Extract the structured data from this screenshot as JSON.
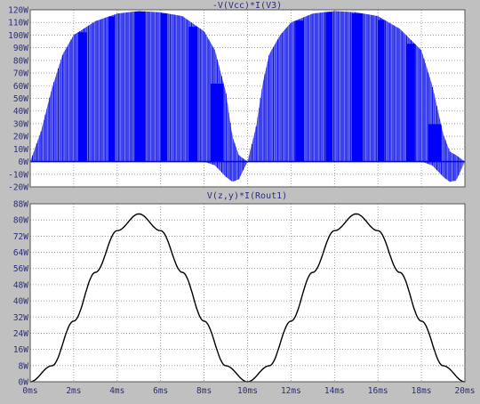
{
  "colors": {
    "background": "#c0c0c0",
    "plot_background": "#ffffff",
    "grid": "#8a8a8a",
    "axis_text": "#2d2d7a",
    "series_power": "#0000ff",
    "series_power_envelope": "#6f74e4",
    "series_load": "#000000"
  },
  "chart_data": [
    {
      "type": "line",
      "title": "-V(Vcc)*I(V3)",
      "x": [
        0,
        0.5,
        1,
        1.5,
        2,
        3,
        4,
        5,
        6,
        7,
        8,
        8.5,
        9,
        9.3,
        9.6,
        10,
        10.4,
        10.7,
        11,
        11.5,
        12,
        13,
        14,
        15,
        16,
        17,
        18,
        18.5,
        19,
        19.3,
        19.6,
        20
      ],
      "y_upper": [
        0,
        24,
        58,
        85,
        100,
        111,
        117,
        119,
        118,
        115,
        103,
        88,
        55,
        20,
        5,
        0,
        28,
        62,
        85,
        100,
        110,
        117,
        119,
        118,
        115,
        105,
        88,
        60,
        22,
        8,
        5,
        0
      ],
      "y_lower": [
        0,
        0,
        0,
        0,
        0,
        0,
        0,
        0,
        0,
        0,
        0,
        -3,
        -12,
        -16,
        -14,
        0,
        0,
        0,
        0,
        0,
        0,
        0,
        0,
        0,
        0,
        0,
        0,
        -3,
        -12,
        -16,
        -15,
        0
      ],
      "xlim": [
        0,
        20
      ],
      "ylim": [
        -20,
        120
      ],
      "y_ticks": [
        "120W",
        "110W",
        "100W",
        "90W",
        "80W",
        "70W",
        "60W",
        "50W",
        "40W",
        "30W",
        "20W",
        "10W",
        "0W",
        "-10W",
        "-20W"
      ],
      "y_tick_values": [
        120,
        110,
        100,
        90,
        80,
        70,
        60,
        50,
        40,
        30,
        20,
        10,
        0,
        -10,
        -20
      ],
      "grid": true
    },
    {
      "type": "line",
      "title": "V(z,y)*I(Rout1)",
      "x_unit": "ms",
      "y_unit": "W",
      "x": [
        0,
        1,
        2,
        3,
        4,
        5,
        6,
        7,
        8,
        9,
        10,
        11,
        12,
        13,
        14,
        15,
        16,
        17,
        18,
        19,
        20
      ],
      "y": [
        0,
        7.9,
        30.0,
        54.1,
        74.7,
        83.0,
        74.7,
        54.1,
        30.0,
        7.9,
        0,
        7.9,
        30.0,
        54.1,
        74.7,
        83.0,
        74.7,
        54.1,
        30.0,
        7.9,
        0
      ],
      "xlim": [
        0,
        20
      ],
      "ylim": [
        0,
        88
      ],
      "y_ticks": [
        "88W",
        "80W",
        "72W",
        "64W",
        "56W",
        "48W",
        "40W",
        "32W",
        "24W",
        "16W",
        "8W",
        "0W"
      ],
      "y_tick_values": [
        88,
        80,
        72,
        64,
        56,
        48,
        40,
        32,
        24,
        16,
        8,
        0
      ],
      "x_ticks": [
        "0ms",
        "2ms",
        "4ms",
        "6ms",
        "8ms",
        "10ms",
        "12ms",
        "14ms",
        "16ms",
        "18ms",
        "20ms"
      ],
      "x_tick_values": [
        0,
        2,
        4,
        6,
        8,
        10,
        12,
        14,
        16,
        18,
        20
      ],
      "grid": true
    }
  ]
}
